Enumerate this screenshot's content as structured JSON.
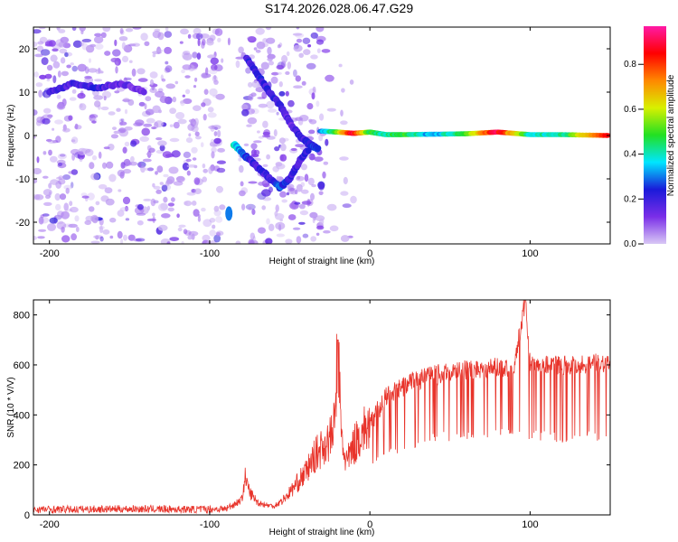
{
  "title": "S174.2026.028.06.47.G29",
  "chart_data": [
    {
      "type": "heatmap",
      "name": "spectrogram",
      "xlabel": "Height of straight line (km)",
      "ylabel": "Frequency (Hz)",
      "xlim": [
        -210,
        150
      ],
      "ylim": [
        -25,
        25
      ],
      "xticks": [
        -200,
        -100,
        0,
        100
      ],
      "yticks": [
        -20,
        -10,
        0,
        10,
        20
      ],
      "colorbar": {
        "label": "Normalized spectral amplitude",
        "ticks": [
          0.0,
          0.2,
          0.4,
          0.6,
          0.8
        ],
        "tick_labels": [
          "0.0",
          "0.2",
          "0.4",
          "0.6",
          "0.8"
        ],
        "range": [
          0,
          0.97
        ],
        "stops": [
          "#d9c8f5",
          "#7a2ee8",
          "#1a1ad9",
          "#00e6ff",
          "#22e022",
          "#d8f000",
          "#ff8800",
          "#ff0000",
          "#ff1aa6"
        ]
      },
      "features": [
        {
          "name": "carrier-line",
          "x": [
            -30,
            -20,
            -10,
            0,
            10,
            20,
            40,
            60,
            80,
            100,
            120,
            150
          ],
          "y": [
            1.0,
            0.8,
            0.5,
            0.8,
            0.2,
            0.2,
            0.3,
            0.4,
            0.8,
            0.2,
            0.2,
            0.0
          ],
          "amplitude": [
            0.3,
            0.5,
            0.9,
            0.5,
            0.4,
            0.5,
            0.3,
            0.5,
            0.9,
            0.4,
            0.4,
            0.9
          ]
        },
        {
          "name": "diagonal-trace-upper",
          "x": [
            -77,
            -70,
            -63,
            -56,
            -50,
            -44,
            -38,
            -32
          ],
          "y": [
            18,
            14,
            10,
            7,
            3,
            0,
            -2,
            -3
          ],
          "amplitude": [
            0.2,
            0.2,
            0.2,
            0.2,
            0.15,
            0.2,
            0.2,
            0.3
          ]
        },
        {
          "name": "diagonal-trace-lower",
          "x": [
            -85,
            -80,
            -74,
            -68,
            -62,
            -56,
            -50,
            -44,
            -38
          ],
          "y": [
            -2,
            -4,
            -6,
            -8,
            -10,
            -12,
            -10,
            -6,
            -3
          ],
          "amplitude": [
            0.4,
            0.3,
            0.2,
            0.2,
            0.2,
            0.3,
            0.2,
            0.2,
            0.2
          ]
        },
        {
          "name": "band-10hz",
          "x": [
            -200,
            -185,
            -170,
            -155,
            -140
          ],
          "y": [
            10,
            12,
            11,
            12,
            10
          ],
          "amplitude": [
            0.15,
            0.2,
            0.2,
            0.15,
            0.1
          ]
        },
        {
          "name": "spot-bottom",
          "x": [
            -88
          ],
          "y": [
            -18
          ],
          "amplitude": [
            0.3
          ]
        }
      ]
    },
    {
      "type": "line",
      "name": "snr",
      "xlabel": "Height of straight line (km)",
      "ylabel": "SNR (10 * V/V)",
      "xlim": [
        -210,
        150
      ],
      "ylim": [
        0,
        860
      ],
      "xticks": [
        -200,
        -100,
        0,
        100
      ],
      "yticks": [
        0,
        200,
        400,
        600,
        800
      ],
      "color": "#e8332a",
      "series": [
        {
          "name": "SNR",
          "x": [
            -210,
            -190,
            -170,
            -150,
            -130,
            -110,
            -90,
            -80,
            -78,
            -75,
            -70,
            -65,
            -60,
            -55,
            -50,
            -45,
            -40,
            -35,
            -30,
            -25,
            -22,
            -20,
            -18,
            -16,
            -14,
            -10,
            -5,
            0,
            5,
            10,
            15,
            20,
            25,
            30,
            35,
            40,
            50,
            60,
            70,
            80,
            90,
            97,
            100,
            110,
            120,
            130,
            140,
            150
          ],
          "values": [
            22,
            22,
            23,
            24,
            23,
            22,
            24,
            60,
            150,
            90,
            50,
            40,
            35,
            55,
            90,
            130,
            170,
            230,
            270,
            300,
            360,
            700,
            330,
            240,
            210,
            280,
            330,
            360,
            420,
            470,
            490,
            510,
            530,
            540,
            550,
            560,
            570,
            580,
            585,
            590,
            595,
            860,
            600,
            605,
            600,
            600,
            605,
            610
          ],
          "lower_envelope": {
            "x": [
              0,
              20,
              40,
              60,
              80,
              100,
              120,
              150
            ],
            "values": [
              200,
              250,
              290,
              300,
              310,
              300,
              290,
              300
            ]
          }
        }
      ]
    }
  ]
}
